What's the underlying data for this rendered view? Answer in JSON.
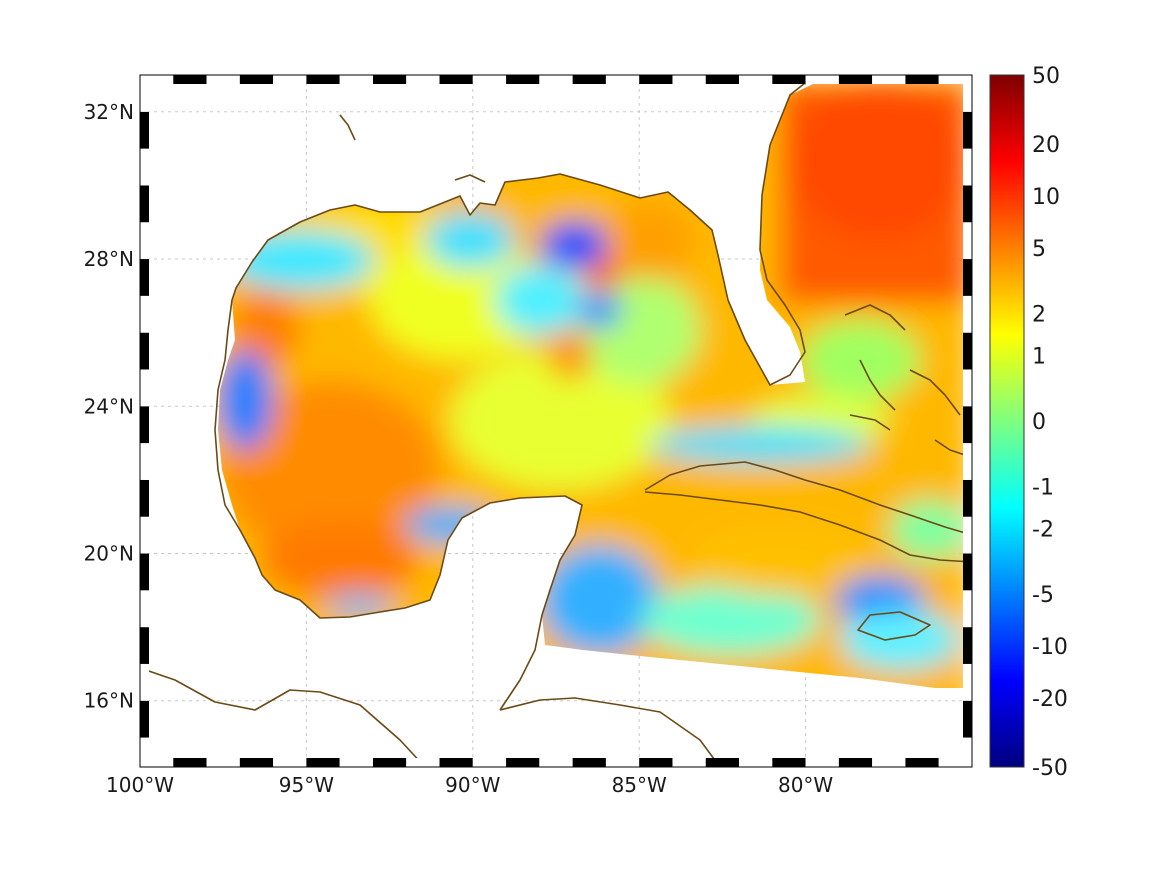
{
  "map": {
    "lon_range": [
      -100,
      -75
    ],
    "lat_range": [
      14.2,
      33
    ],
    "lon_ticks": [
      {
        "value": -100,
        "label": "100°W"
      },
      {
        "value": -95,
        "label": "95°W"
      },
      {
        "value": -90,
        "label": "90°W"
      },
      {
        "value": -85,
        "label": "85°W"
      },
      {
        "value": -80,
        "label": "80°W"
      }
    ],
    "lat_ticks": [
      {
        "value": 32,
        "label": "32°N"
      },
      {
        "value": 28,
        "label": "28°N"
      },
      {
        "value": 24,
        "label": "24°N"
      },
      {
        "value": 20,
        "label": "20°N"
      },
      {
        "value": 16,
        "label": "16°N"
      }
    ],
    "grid": true,
    "coastline_color": "#6b4a16"
  },
  "colorbar": {
    "ticks": [
      "50",
      "20",
      "10",
      "5",
      "2",
      "1",
      "0",
      "-1",
      "-2",
      "-5",
      "-10",
      "-20",
      "-50"
    ],
    "colors_top_to_bottom": [
      "#7f0000",
      "#ff0000",
      "#ff7f00",
      "#ffff00",
      "#7fff7f",
      "#00ffff",
      "#007fff",
      "#0000ff",
      "#00007f"
    ]
  }
}
